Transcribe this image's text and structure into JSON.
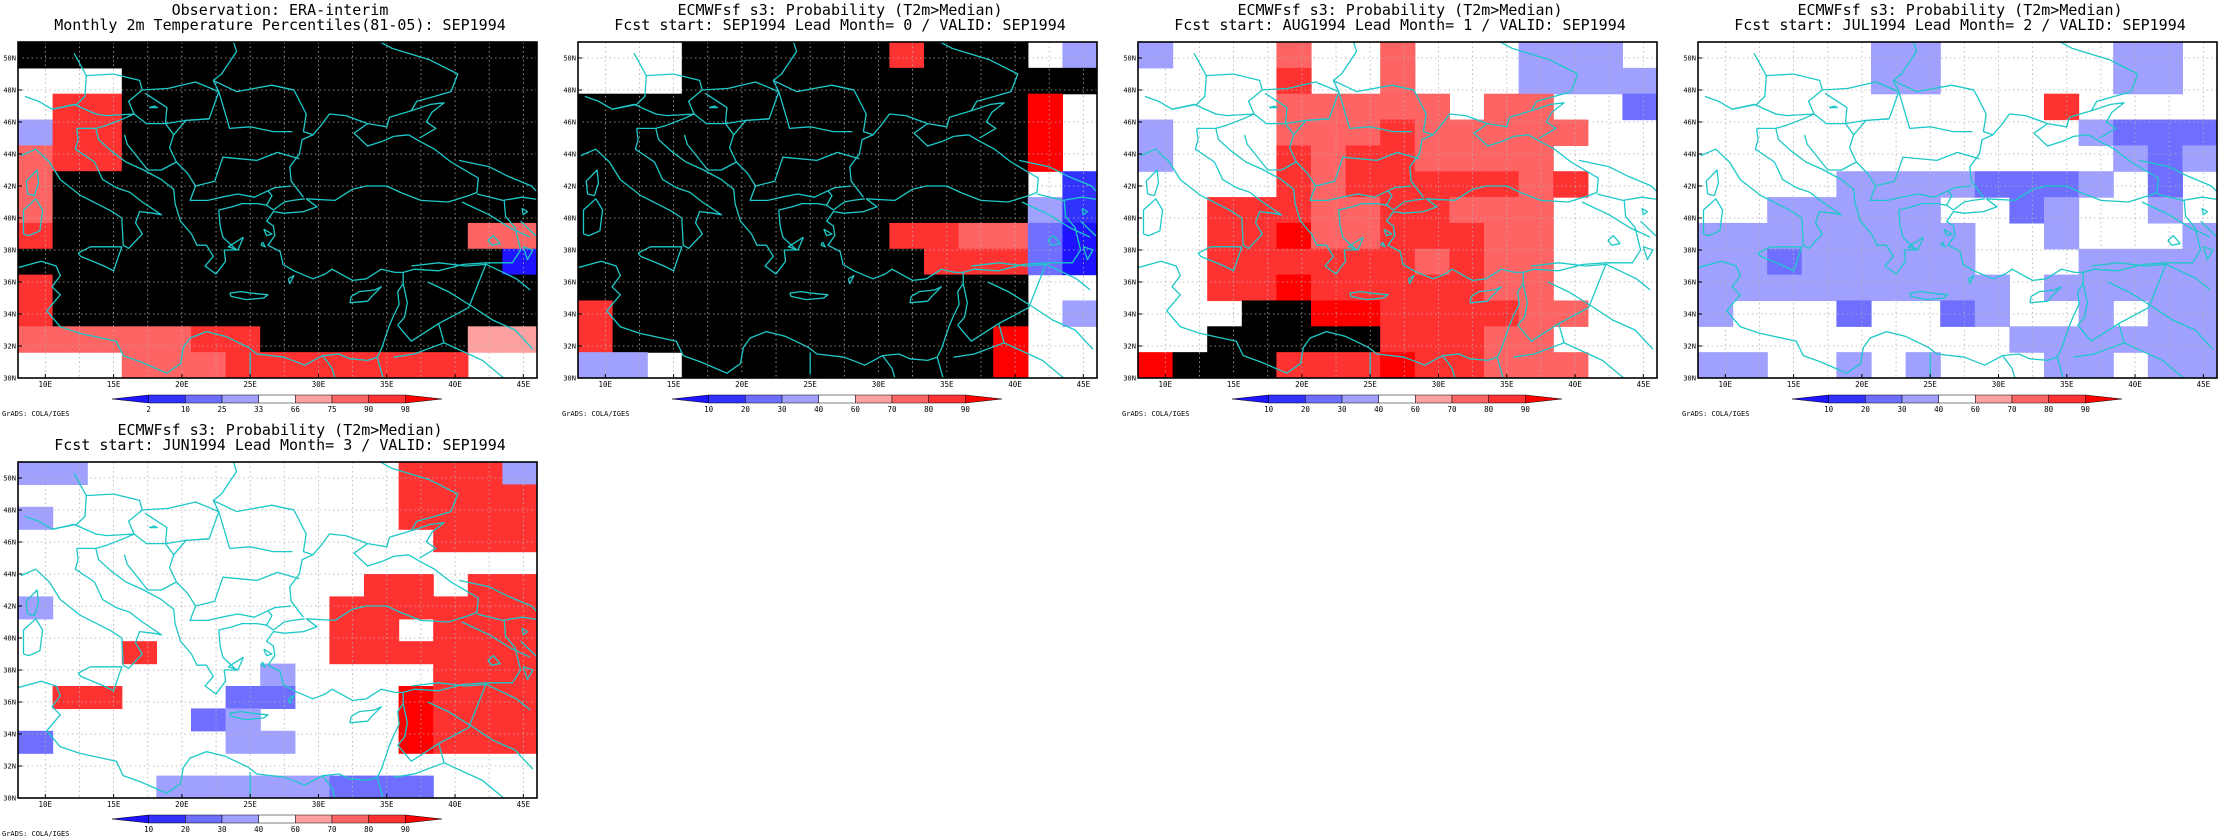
{
  "figure": {
    "xticks": [
      "10E",
      "15E",
      "20E",
      "25E",
      "30E",
      "35E",
      "40E",
      "45E"
    ],
    "yticks": [
      "30N",
      "32N",
      "34N",
      "36N",
      "38N",
      "40N",
      "42N",
      "44N",
      "46N",
      "48N",
      "50N"
    ],
    "credit": "GrADS: COLA/IGES",
    "panels": [
      {
        "title1": "Observation: ERA-interim",
        "title2": "Monthly 2m Temperature Percentiles(81-05): SEP1994",
        "legend_labels": [
          "2",
          "10",
          "25",
          "33",
          "66",
          "75",
          "90",
          "98"
        ],
        "bins": [
          "<2",
          "2-10",
          "10-25",
          "25-33",
          "33-66",
          "66-75",
          "75-90",
          "90-98",
          ">98"
        ],
        "grid": [
          "999999999999999",
          "444999999999999",
          "477999999999999",
          "377999999999999",
          "677999999999999",
          "699999999999999",
          "699999999999999",
          "799999999999966",
          "999999999999990",
          "799999999999999",
          "799999999999999",
          "666667799999955",
          "444666777777744"
        ]
      },
      {
        "title1": "ECMWFsf s3: Probability (T2m>Median)",
        "title2": "Fcst start: SEP1994   Lead Month= 0 / VALID: SEP1994",
        "legend_labels": [
          "10",
          "20",
          "30",
          "40",
          "60",
          "70",
          "80",
          "90"
        ],
        "bins": [
          "<10",
          "10-20",
          "20-30",
          "30-40",
          "40-60",
          "60-70",
          "70-80",
          "80-90",
          ">90"
        ],
        "grid": [
          "444999999799943",
          "444999999999999",
          "999999999999984",
          "999999999999984",
          "999999999999984",
          "999999999999941",
          "999999999999931",
          "999999999776620",
          "999999999977720",
          "999999999999944",
          "799999999999943",
          "799999999999844",
          "334999999999844"
        ]
      },
      {
        "title1": "ECMWFsf s3: Probability (T2m>Median)",
        "title2": "Fcst start: AUG1994   Lead Month= 1 / VALID: SEP1994",
        "legend_labels": [
          "10",
          "20",
          "30",
          "40",
          "60",
          "70",
          "80",
          "90"
        ],
        "bins": [
          "<10",
          "10-20",
          "20-30",
          "30-40",
          "40-60",
          "60-70",
          "70-80",
          "80-90",
          ">90"
        ],
        "grid": [
          "344464464443334",
          "444474464443333",
          "444466666466442",
          "344466676666644",
          "344476776666444",
          "444476777776744",
          "447776677666444",
          "447786677766444",
          "447777776766444",
          "447787777766444",
          "444998877776644",
          "449999977766444",
          "899977787766644"
        ]
      },
      {
        "title1": "ECMWFsf s3: Probability (T2m>Median)",
        "title2": "Fcst start: JUL1994   Lead Month= 2 / VALID: SEP1994",
        "legend_labels": [
          "10",
          "20",
          "30",
          "40",
          "60",
          "70",
          "80",
          "90"
        ],
        "bins": [
          "<10",
          "10-20",
          "20-30",
          "30-40",
          "40-60",
          "60-70",
          "70-80",
          "80-90",
          ">90"
        ],
        "grid": [
          "444443344444334",
          "444443344444334",
          "444444444474444",
          "444444444443222",
          "444444444444323",
          "444433332223424",
          "443333344234434",
          "333333334434443",
          "332333334443333",
          "333333333433333",
          "344424423443433",
          "444444444333333",
          "334434344433433"
        ]
      },
      {
        "title1": "ECMWFsf s3: Probability (T2m>Median)",
        "title2": "Fcst start: JUN1994   Lead Month= 3 / VALID: SEP1994",
        "legend_labels": [
          "10",
          "20",
          "30",
          "40",
          "60",
          "70",
          "80",
          "90"
        ],
        "bins": [
          "<10",
          "10-20",
          "20-30",
          "30-40",
          "40-60",
          "60-70",
          "70-80",
          "80-90",
          ">90"
        ],
        "grid": [
          "334444444447773",
          "444444444447777",
          "344444444447777",
          "444444444444777",
          "444444444444444",
          "444444444477477",
          "344444444777777",
          "444444444774777",
          "444744444777777",
          "444444434444777",
          "477444224448777",
          "444442344448777",
          "244444334448777",
          "444444444444444",
          "444433333222444"
        ]
      }
    ]
  }
}
